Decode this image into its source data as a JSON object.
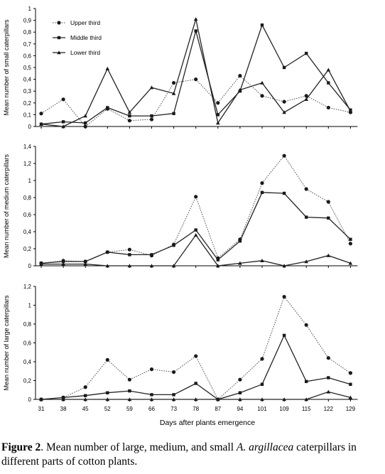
{
  "chart_data": [
    {
      "type": "line",
      "ylabel": "Mean number of small caterpillars",
      "ylim": [
        0,
        1
      ],
      "yticks": [
        "0",
        "0,1",
        "0,2",
        "0,3",
        "0,4",
        "0,5",
        "0,6",
        "0,7",
        "0,8",
        "0,9",
        "1"
      ],
      "categories": [
        "31",
        "38",
        "45",
        "52",
        "59",
        "66",
        "73",
        "78",
        "87",
        "94",
        "101",
        "109",
        "115",
        "122",
        "129"
      ],
      "legend": {
        "placement": "top-left",
        "entries": [
          "Upper third",
          "Middle third",
          "Lower third"
        ]
      },
      "series": [
        {
          "name": "Upper third",
          "style": "dotted",
          "marker": "circle",
          "values": [
            0.11,
            0.23,
            0.0,
            0.15,
            0.05,
            0.06,
            0.37,
            0.4,
            0.2,
            0.43,
            0.26,
            0.21,
            0.26,
            0.16,
            0.12
          ]
        },
        {
          "name": "Middle third",
          "style": "solid",
          "marker": "square",
          "values": [
            0.02,
            0.04,
            0.03,
            0.16,
            0.09,
            0.09,
            0.11,
            0.81,
            0.1,
            0.3,
            0.86,
            0.5,
            0.62,
            0.37,
            0.14
          ]
        },
        {
          "name": "Lower third",
          "style": "solid",
          "marker": "triangle",
          "values": [
            0.02,
            0.0,
            0.09,
            0.49,
            0.12,
            0.33,
            0.28,
            0.91,
            0.03,
            0.31,
            0.37,
            0.12,
            0.23,
            0.48,
            0.13
          ]
        }
      ]
    },
    {
      "type": "line",
      "ylabel": "Mean number of medium caterpillars",
      "ylim": [
        0,
        1.4
      ],
      "yticks": [
        "0",
        "0,2",
        "0,4",
        "0,6",
        "0,8",
        "1",
        "1,2",
        "1,4"
      ],
      "categories": [
        "31",
        "38",
        "45",
        "52",
        "59",
        "66",
        "73",
        "78",
        "87",
        "94",
        "101",
        "109",
        "115",
        "122",
        "129"
      ],
      "series": [
        {
          "name": "Upper third",
          "style": "dotted",
          "marker": "circle",
          "values": [
            0.03,
            0.06,
            0.05,
            0.16,
            0.19,
            0.12,
            0.25,
            0.81,
            0.09,
            0.31,
            0.97,
            1.29,
            0.9,
            0.75,
            0.26
          ]
        },
        {
          "name": "Middle third",
          "style": "solid",
          "marker": "square",
          "values": [
            0.03,
            0.05,
            0.05,
            0.16,
            0.13,
            0.13,
            0.24,
            0.42,
            0.07,
            0.29,
            0.86,
            0.85,
            0.57,
            0.56,
            0.31
          ]
        },
        {
          "name": "Lower third",
          "style": "solid",
          "marker": "triangle",
          "values": [
            0.02,
            0.02,
            0.02,
            0.0,
            0.0,
            0.0,
            0.0,
            0.36,
            0.0,
            0.03,
            0.06,
            0.0,
            0.05,
            0.12,
            0.03
          ]
        }
      ]
    },
    {
      "type": "line",
      "ylabel": "Mean number of large caterpillars",
      "ylim": [
        0,
        1.2
      ],
      "yticks": [
        "0",
        "0,2",
        "0,4",
        "0,6",
        "0,8",
        "1",
        "1,2"
      ],
      "categories": [
        "31",
        "38",
        "45",
        "52",
        "59",
        "66",
        "73",
        "78",
        "87",
        "94",
        "101",
        "109",
        "115",
        "122",
        "129"
      ],
      "xlabel": "Days after plants emergence",
      "series": [
        {
          "name": "Upper third",
          "style": "dotted",
          "marker": "circle",
          "values": [
            0.0,
            0.02,
            0.13,
            0.42,
            0.21,
            0.32,
            0.29,
            0.46,
            0.0,
            0.21,
            0.43,
            1.09,
            0.79,
            0.44,
            0.28
          ]
        },
        {
          "name": "Middle third",
          "style": "solid",
          "marker": "square",
          "values": [
            0.0,
            0.02,
            0.04,
            0.07,
            0.09,
            0.05,
            0.05,
            0.17,
            0.0,
            0.07,
            0.16,
            0.68,
            0.19,
            0.23,
            0.16
          ]
        },
        {
          "name": "Lower third",
          "style": "solid",
          "marker": "triangle",
          "values": [
            0.0,
            0.0,
            0.0,
            0.0,
            0.0,
            0.0,
            0.0,
            0.0,
            0.0,
            0.0,
            0.0,
            0.0,
            0.0,
            0.08,
            0.02
          ]
        }
      ]
    }
  ],
  "caption": {
    "label": "Figure 2",
    "text_before": ". Mean number of large, medium, and small ",
    "species": "A. argillacea",
    "text_after": " caterpillars in different parts of cotton plants."
  }
}
